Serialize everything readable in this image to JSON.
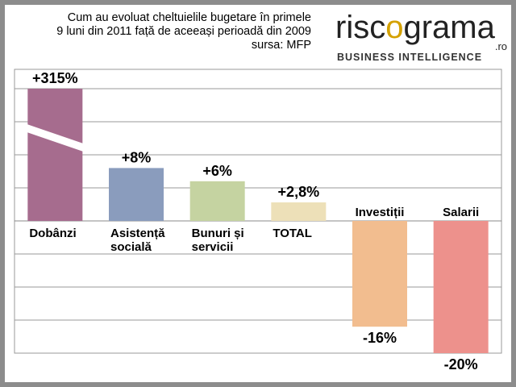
{
  "header": {
    "line1": "Cum au evoluat cheltuielile bugetare în primele",
    "line2": "9 luni din 2011 față de aceeași perioadă din 2009",
    "line3": "sursa: MFP"
  },
  "logo": {
    "word": "riscograma",
    "suffix": ".ro",
    "tagline": "BUSINESS INTELLIGENCE",
    "accent_color": "#d4a100"
  },
  "chart_data": {
    "type": "bar",
    "categories": [
      [
        "Dobânzi"
      ],
      [
        "Asistență",
        "socială"
      ],
      [
        "Bunuri și",
        "servicii"
      ],
      [
        "TOTAL"
      ],
      [
        "Investiții"
      ],
      [
        "Salarii"
      ]
    ],
    "values": [
      315,
      8,
      6,
      2.8,
      -16,
      -20
    ],
    "data_labels": [
      "+315%",
      "+8%",
      "+6%",
      "+2,8%",
      "-16%",
      "-20%"
    ],
    "colors": [
      "#a66c8e",
      "#8a9cbd",
      "#c5d3a1",
      "#ede0b8",
      "#f2bd8f",
      "#ed918c"
    ],
    "axis_break": true,
    "ylim": [
      -20,
      20
    ],
    "gridlines": true
  }
}
